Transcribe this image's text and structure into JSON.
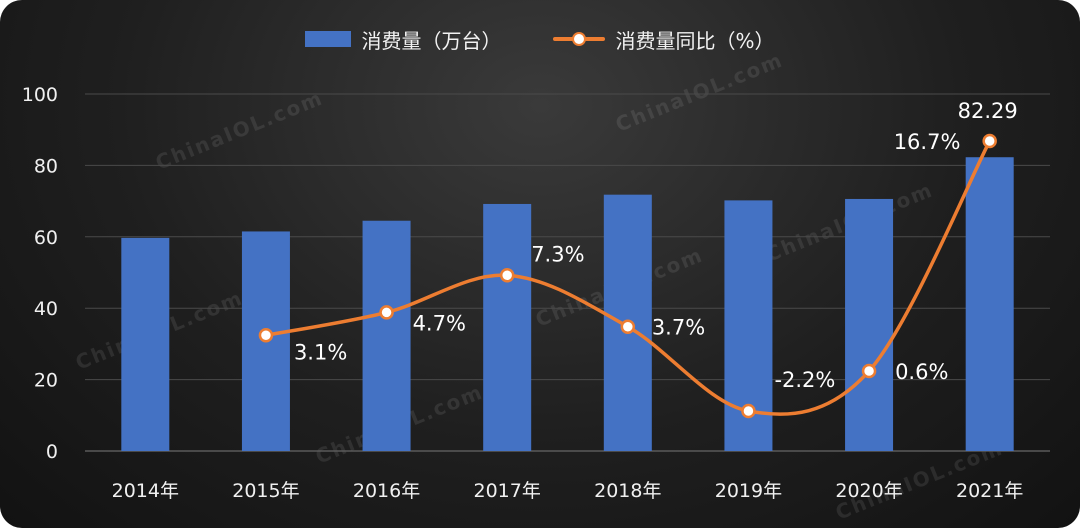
{
  "legend": {
    "bar_label": "消费量（万台）",
    "line_label": "消费量同比（%）"
  },
  "watermark": "ChinaIOL.com",
  "colors": {
    "bar": "#4472c4",
    "line": "#ed7d31",
    "marker_fill": "#ffffff",
    "text": "#f0f0f0",
    "grid": "#4a4a4a"
  },
  "chart_data": {
    "type": "bar",
    "categories": [
      "2014年",
      "2015年",
      "2016年",
      "2017年",
      "2018年",
      "2019年",
      "2020年",
      "2021年"
    ],
    "series": [
      {
        "name": "消费量（万台）",
        "type": "bar",
        "values": [
          59.7,
          61.5,
          64.5,
          69.2,
          71.8,
          70.2,
          70.6,
          82.29
        ],
        "data_labels": [
          null,
          null,
          null,
          null,
          null,
          null,
          null,
          "82.29"
        ]
      },
      {
        "name": "消费量同比（%）",
        "type": "line",
        "smooth": true,
        "values": [
          null,
          3.1,
          4.7,
          7.3,
          3.7,
          -2.2,
          0.6,
          16.7
        ],
        "data_labels": [
          null,
          "3.1%",
          "4.7%",
          "7.3%",
          "3.7%",
          "-2.2%",
          "0.6%",
          "16.7%"
        ]
      }
    ],
    "yticks": [
      "0",
      "20",
      "40",
      "60",
      "80",
      "100"
    ],
    "ylim": [
      0,
      100
    ],
    "grid": true,
    "legend_position": "top-center"
  }
}
